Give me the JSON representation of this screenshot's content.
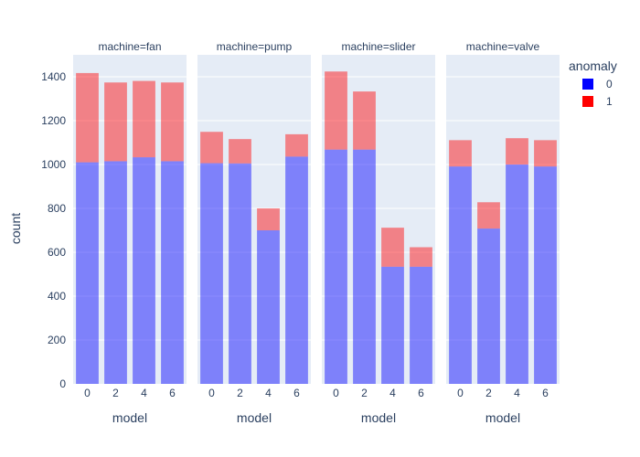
{
  "chart_data": {
    "type": "bar",
    "barmode": "stack",
    "facet_titles": [
      "machine=fan",
      "machine=pump",
      "machine=slider",
      "machine=valve"
    ],
    "categories": [
      "0",
      "2",
      "4",
      "6"
    ],
    "xlabel": "model",
    "ylabel": "count",
    "ylim": [
      0,
      1500
    ],
    "yticks": [
      0,
      200,
      400,
      600,
      800,
      1000,
      1200,
      1400
    ],
    "grid": true,
    "legend": {
      "title": "anomaly",
      "position": "top-right",
      "items": [
        "0",
        "1"
      ]
    },
    "series": [
      {
        "name": "0",
        "color": "#0000ff",
        "values": [
          [
            1010,
            1015,
            1033,
            1015
          ],
          [
            1006,
            1005,
            700,
            1036
          ],
          [
            1068,
            1068,
            534,
            534
          ],
          [
            991,
            708,
            1000,
            991
          ]
        ]
      },
      {
        "name": "1",
        "color": "#ff0000",
        "values": [
          [
            407,
            359,
            348,
            359
          ],
          [
            143,
            111,
            100,
            102
          ],
          [
            356,
            265,
            178,
            89
          ],
          [
            120,
            120,
            120,
            120
          ]
        ]
      }
    ]
  }
}
